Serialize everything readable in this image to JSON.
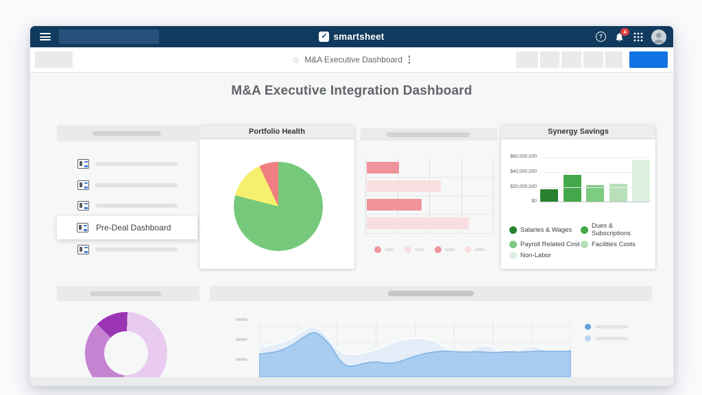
{
  "brand": {
    "name": "smartsheet",
    "notification_count": "4"
  },
  "icons": {
    "menu": "hamburger",
    "logo_mark": "checkbox-check",
    "help": "question-circle",
    "notifications": "bell",
    "apps": "grid-3x3",
    "avatar": "person-silhouette",
    "favorite": "star-outline",
    "more": "kebab-vertical"
  },
  "toolbar": {
    "breadcrumb": "M&A Executive Dashboard"
  },
  "page": {
    "title": "M&A Executive Integration Dashboard"
  },
  "sidebar_widget": {
    "active_label": "Pre-Deal Dashboard",
    "ghost_item_count": 4
  },
  "portfolio_health": {
    "title": "Portfolio Health",
    "chart_data": {
      "type": "pie",
      "start": "0deg",
      "slices": [
        {
          "name": "green-status",
          "value": 79,
          "color": "#76c97a"
        },
        {
          "name": "yellow-status",
          "value": 14,
          "color": "#f7f06e"
        },
        {
          "name": "red-status",
          "value": 7,
          "color": "#ef7f80"
        }
      ]
    }
  },
  "ghost_bar_widget": {
    "chart_data": {
      "type": "bar-horizontal",
      "values_pct": [
        25,
        58,
        43,
        80
      ],
      "bar_colors": [
        "#f0939b",
        "#fadde0",
        "#f0939b",
        "#fadde0"
      ],
      "legend_dot_colors": [
        "#f0939b",
        "#fadde0",
        "#f0939b",
        "#fadde0"
      ]
    }
  },
  "synergy": {
    "title": "Synergy Savings",
    "chart_data": {
      "type": "bar",
      "categories": [
        "Salaries & Wages",
        "Dues & Subscriptions",
        "Payroll Related Cost",
        "Facilities Costs",
        "Non-Labor"
      ],
      "values": [
        17000000,
        36000000,
        22000000,
        24000000,
        57000000
      ],
      "colors": [
        "#27812f",
        "#43a84a",
        "#7ecb82",
        "#b7e0b9",
        "#def0df"
      ],
      "ylim": [
        0,
        65000000
      ],
      "yticks": [
        {
          "label": "$0",
          "value": 0
        },
        {
          "label": "$20,000,000",
          "value": 20000000
        },
        {
          "label": "$40,000,000",
          "value": 40000000
        },
        {
          "label": "$60,000,000",
          "value": 60000000
        }
      ],
      "legend_position": "bottom"
    }
  },
  "donut_widget": {
    "chart_data": {
      "type": "donut",
      "start": "-45deg",
      "slices": [
        {
          "name": "dark-purple",
          "value": 13,
          "color": "#9b35b5"
        },
        {
          "name": "light-lavender",
          "value": 51,
          "color": "#e8cbee"
        },
        {
          "name": "medium-purple",
          "value": 36,
          "color": "#c583d2"
        }
      ]
    }
  },
  "area_widget": {
    "chart_data": {
      "type": "area",
      "series": [
        {
          "name": "background-series-light-blue",
          "fill": "#e4edf8",
          "stroke": "#fbfdfe",
          "points": [
            [
              0,
              0.5
            ],
            [
              0.05,
              0.53
            ],
            [
              0.1,
              0.62
            ],
            [
              0.15,
              0.8
            ],
            [
              0.175,
              0.84
            ],
            [
              0.21,
              0.74
            ],
            [
              0.25,
              0.45
            ],
            [
              0.285,
              0.36
            ],
            [
              0.33,
              0.38
            ],
            [
              0.39,
              0.48
            ],
            [
              0.44,
              0.6
            ],
            [
              0.49,
              0.64
            ],
            [
              0.54,
              0.63
            ],
            [
              0.58,
              0.55
            ],
            [
              0.62,
              0.4
            ],
            [
              0.66,
              0.38
            ],
            [
              0.7,
              0.51
            ],
            [
              0.735,
              0.53
            ],
            [
              0.775,
              0.4
            ],
            [
              0.81,
              0.37
            ],
            [
              0.86,
              0.5
            ],
            [
              0.89,
              0.52
            ],
            [
              0.93,
              0.4
            ],
            [
              0.97,
              0.38
            ],
            [
              1,
              0.42
            ]
          ]
        },
        {
          "name": "foreground-series-blue",
          "fill": "#a9cdf0",
          "stroke": "#7eb1e6",
          "points": [
            [
              0,
              0.38
            ],
            [
              0.05,
              0.4
            ],
            [
              0.1,
              0.5
            ],
            [
              0.14,
              0.65
            ],
            [
              0.17,
              0.74
            ],
            [
              0.19,
              0.72
            ],
            [
              0.23,
              0.52
            ],
            [
              0.26,
              0.25
            ],
            [
              0.29,
              0.16
            ],
            [
              0.33,
              0.22
            ],
            [
              0.37,
              0.26
            ],
            [
              0.41,
              0.22
            ],
            [
              0.45,
              0.25
            ],
            [
              0.5,
              0.35
            ],
            [
              0.55,
              0.41
            ],
            [
              0.6,
              0.43
            ],
            [
              0.65,
              0.41
            ],
            [
              0.7,
              0.42
            ],
            [
              0.75,
              0.4
            ],
            [
              0.8,
              0.42
            ],
            [
              0.85,
              0.41
            ],
            [
              0.9,
              0.43
            ],
            [
              0.95,
              0.42
            ],
            [
              1,
              0.43
            ]
          ]
        }
      ],
      "legend_dot_colors": [
        "#64a1dd",
        "#bcd7f1"
      ],
      "grid": true
    }
  }
}
